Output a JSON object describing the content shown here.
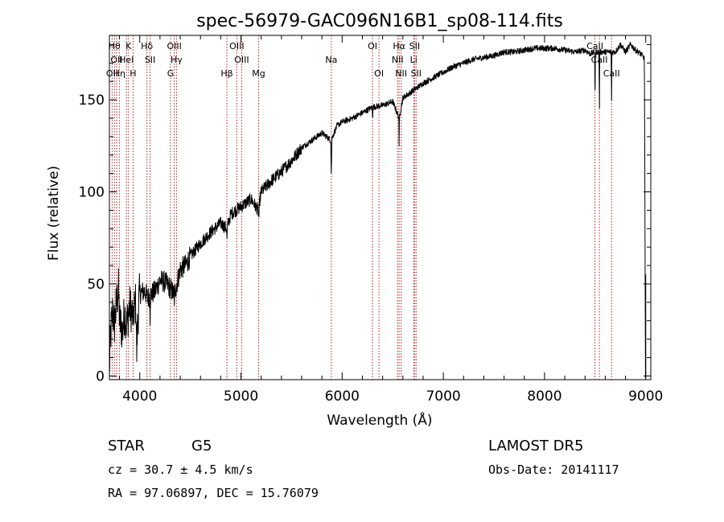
{
  "chart_data": {
    "type": "line",
    "title": "spec-56979-GAC096N16B1_sp08-114.fits",
    "xlabel": "Wavelength (Å)",
    "ylabel": "Flux (relative)",
    "xlim": [
      3700,
      9050
    ],
    "ylim": [
      -2,
      185
    ],
    "xticks": [
      4000,
      5000,
      6000,
      7000,
      8000,
      9000
    ],
    "yticks": [
      0,
      50,
      100,
      150
    ],
    "grid": false,
    "series": [
      {
        "color": "#000000",
        "anchors": [
          [
            3700,
            3
          ],
          [
            3710,
            20
          ],
          [
            3730,
            35
          ],
          [
            3750,
            28
          ],
          [
            3770,
            40
          ],
          [
            3790,
            47
          ],
          [
            3800,
            30
          ],
          [
            3830,
            24
          ],
          [
            3850,
            35
          ],
          [
            3870,
            28
          ],
          [
            3900,
            38
          ],
          [
            3930,
            33
          ],
          [
            3960,
            40
          ],
          [
            3970,
            18
          ],
          [
            3990,
            40
          ],
          [
            4000,
            45
          ],
          [
            4050,
            46
          ],
          [
            4080,
            42
          ],
          [
            4100,
            44
          ],
          [
            4150,
            46
          ],
          [
            4200,
            52
          ],
          [
            4250,
            51
          ],
          [
            4300,
            48
          ],
          [
            4340,
            44
          ],
          [
            4400,
            58
          ],
          [
            4450,
            60
          ],
          [
            4500,
            65
          ],
          [
            4600,
            72
          ],
          [
            4700,
            78
          ],
          [
            4800,
            83
          ],
          [
            4860,
            80
          ],
          [
            4900,
            88
          ],
          [
            5000,
            92
          ],
          [
            5100,
            96
          ],
          [
            5170,
            90
          ],
          [
            5200,
            100
          ],
          [
            5300,
            106
          ],
          [
            5400,
            111
          ],
          [
            5500,
            117
          ],
          [
            5600,
            124
          ],
          [
            5700,
            128
          ],
          [
            5800,
            132
          ],
          [
            5890,
            128
          ],
          [
            5950,
            136
          ],
          [
            6000,
            138
          ],
          [
            6100,
            140
          ],
          [
            6200,
            143
          ],
          [
            6300,
            146
          ],
          [
            6400,
            147
          ],
          [
            6500,
            149
          ],
          [
            6563,
            140
          ],
          [
            6600,
            151
          ],
          [
            6700,
            155
          ],
          [
            6800,
            159
          ],
          [
            6900,
            162
          ],
          [
            7000,
            165
          ],
          [
            7100,
            168
          ],
          [
            7200,
            170
          ],
          [
            7300,
            172
          ],
          [
            7400,
            173
          ],
          [
            7500,
            174
          ],
          [
            7600,
            176
          ],
          [
            7700,
            176
          ],
          [
            7800,
            177
          ],
          [
            7900,
            178
          ],
          [
            8000,
            178
          ],
          [
            8100,
            178
          ],
          [
            8200,
            177
          ],
          [
            8300,
            176
          ],
          [
            8400,
            177
          ],
          [
            8450,
            175
          ],
          [
            8500,
            176
          ],
          [
            8600,
            176
          ],
          [
            8700,
            176
          ],
          [
            8750,
            180
          ],
          [
            8800,
            176
          ],
          [
            8850,
            180
          ],
          [
            8900,
            177
          ],
          [
            8950,
            175
          ],
          [
            8980,
            173
          ],
          [
            9000,
            170
          ]
        ],
        "dips": [
          [
            3933,
            3934,
            -15
          ],
          [
            3968,
            3969,
            -10
          ],
          [
            4102,
            4103,
            -12
          ],
          [
            4300,
            4301,
            -4
          ],
          [
            4340,
            4341,
            -6
          ],
          [
            4861,
            4862,
            -8
          ],
          [
            5172,
            5183,
            -6
          ],
          [
            5890,
            5896,
            -20
          ],
          [
            6300,
            6302,
            -6
          ],
          [
            6563,
            6563,
            -20
          ],
          [
            8498,
            8500,
            -28
          ],
          [
            8542,
            8542,
            -38
          ],
          [
            8662,
            8662,
            -32
          ],
          [
            8990,
            9005,
            -175
          ]
        ],
        "spike": [
          9000,
          55
        ]
      }
    ],
    "lines": [
      {
        "wave": 3727,
        "label": "OII",
        "row": 2
      },
      {
        "wave": 3750,
        "label": "Hθ",
        "row": 0
      },
      {
        "wave": 3771,
        "label": "OII",
        "row": 1
      },
      {
        "wave": 3798,
        "label": "Hη",
        "row": 2
      },
      {
        "wave": 3869,
        "label": "HeI",
        "row": 1
      },
      {
        "wave": 3889,
        "label": "K",
        "row": 0
      },
      {
        "wave": 3934,
        "label": "H",
        "row": 2
      },
      {
        "wave": 4071,
        "label": "Hδ",
        "row": 0
      },
      {
        "wave": 4102,
        "label": "SII",
        "row": 1
      },
      {
        "wave": 4304,
        "label": "G",
        "row": 2
      },
      {
        "wave": 4341,
        "label": "OIII",
        "row": 0
      },
      {
        "wave": 4363,
        "label": "Hγ",
        "row": 1
      },
      {
        "wave": 4861,
        "label": "Hβ",
        "row": 2
      },
      {
        "wave": 4959,
        "label": "OIII",
        "row": 0
      },
      {
        "wave": 5007,
        "label": "OIII",
        "row": 1
      },
      {
        "wave": 5175,
        "label": "Mg",
        "row": 2
      },
      {
        "wave": 5893,
        "label": "Na",
        "row": 1
      },
      {
        "wave": 6300,
        "label": "OI",
        "row": 0
      },
      {
        "wave": 6364,
        "label": "OI",
        "row": 2
      },
      {
        "wave": 6548,
        "label": "NII",
        "row": 1
      },
      {
        "wave": 6563,
        "label": "Hα",
        "row": 0
      },
      {
        "wave": 6583,
        "label": "NII",
        "row": 2
      },
      {
        "wave": 6707,
        "label": "Li",
        "row": 1
      },
      {
        "wave": 6716,
        "label": "SII",
        "row": 0
      },
      {
        "wave": 6731,
        "label": "SII",
        "row": 2
      },
      {
        "wave": 8498,
        "label": "CaII",
        "row": 0
      },
      {
        "wave": 8542,
        "label": "CaII",
        "row": 1
      },
      {
        "wave": 8662,
        "label": "CaII",
        "row": 2
      }
    ],
    "annotations": {
      "class": "STAR",
      "subclass": "G5",
      "cz": "cz = 30.7 ± 4.5 km/s",
      "coords": "RA =  97.06897, DEC =  15.76079",
      "survey": "LAMOST  DR5",
      "obs_date": "Obs-Date: 20141117"
    }
  }
}
